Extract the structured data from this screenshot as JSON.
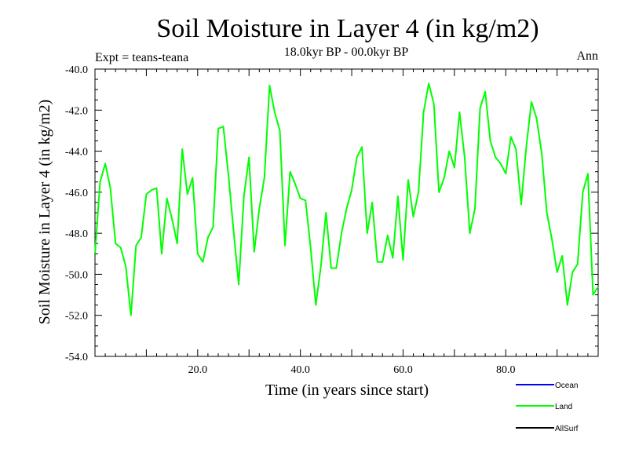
{
  "chart_data": {
    "type": "line",
    "title": "Soil Moisture in Layer 4 (in kg/m2)",
    "subtitle": "18.0kyr BP - 00.0kyr BP",
    "experiment_label": "Expt = teans-teana",
    "season_label": "Ann",
    "xlabel": "Time (in years since start)",
    "ylabel": "Soil Moisture in Layer 4 (in kg/m2)",
    "xlim": [
      0,
      98
    ],
    "ylim": [
      -54,
      -40
    ],
    "x_ticks": [
      20,
      40,
      60,
      80
    ],
    "x_tick_labels": [
      "20.0",
      "40.0",
      "60.0",
      "80.0"
    ],
    "y_ticks": [
      -54,
      -52,
      -50,
      -48,
      -46,
      -44,
      -42,
      -40
    ],
    "y_tick_labels": [
      "-54.0",
      "-52.0",
      "-50.0",
      "-48.0",
      "-46.0",
      "-44.0",
      "-42.0",
      "-40.0"
    ],
    "legend": [
      {
        "name": "Ocean",
        "color": "#0000ff"
      },
      {
        "name": "Land",
        "color": "#00ff00"
      },
      {
        "name": "AllSurf",
        "color": "#000000"
      }
    ],
    "series": [
      {
        "name": "Land",
        "color": "#00ff00",
        "x": [
          0,
          1,
          2,
          3,
          4,
          5,
          6,
          7,
          8,
          9,
          10,
          11,
          12,
          13,
          14,
          15,
          16,
          17,
          18,
          19,
          20,
          21,
          22,
          23,
          24,
          25,
          26,
          27,
          28,
          29,
          30,
          31,
          32,
          33,
          34,
          35,
          36,
          37,
          38,
          39,
          40,
          41,
          42,
          43,
          44,
          45,
          46,
          47,
          48,
          49,
          50,
          51,
          52,
          53,
          54,
          55,
          56,
          57,
          58,
          59,
          60,
          61,
          62,
          63,
          64,
          65,
          66,
          67,
          68,
          69,
          70,
          71,
          72,
          73,
          74,
          75,
          76,
          77,
          78,
          79,
          80,
          81,
          82,
          83,
          84,
          85,
          86,
          87,
          88,
          89,
          90,
          91,
          92,
          93,
          94,
          95,
          96,
          97,
          98
        ],
        "values": [
          -49.0,
          -45.5,
          -44.6,
          -45.8,
          -48.5,
          -48.7,
          -49.6,
          -52.0,
          -48.6,
          -48.2,
          -46.1,
          -45.9,
          -45.8,
          -49.0,
          -46.3,
          -47.3,
          -48.5,
          -43.9,
          -46.1,
          -45.3,
          -49.0,
          -49.4,
          -48.2,
          -47.7,
          -42.9,
          -42.8,
          -45.2,
          -47.9,
          -50.5,
          -46.2,
          -44.3,
          -48.9,
          -46.8,
          -45.3,
          -40.8,
          -42.1,
          -43.0,
          -48.6,
          -45.0,
          -45.6,
          -46.3,
          -46.4,
          -48.7,
          -51.5,
          -49.6,
          -47.0,
          -49.7,
          -49.7,
          -48.0,
          -46.8,
          -45.9,
          -44.3,
          -43.8,
          -48.0,
          -46.5,
          -49.4,
          -49.4,
          -48.1,
          -49.2,
          -46.2,
          -49.3,
          -45.4,
          -47.2,
          -46.0,
          -42.1,
          -40.7,
          -41.7,
          -46.0,
          -45.3,
          -44.0,
          -44.8,
          -42.1,
          -44.3,
          -48.0,
          -46.8,
          -41.9,
          -41.1,
          -43.5,
          -44.3,
          -44.6,
          -45.1,
          -43.3,
          -43.9,
          -46.6,
          -43.8,
          -41.6,
          -42.4,
          -44.1,
          -47.0,
          -48.3,
          -49.9,
          -49.1,
          -51.5,
          -49.9,
          -49.5,
          -46.0,
          -45.1,
          -51.0,
          -50.6
        ]
      }
    ]
  }
}
